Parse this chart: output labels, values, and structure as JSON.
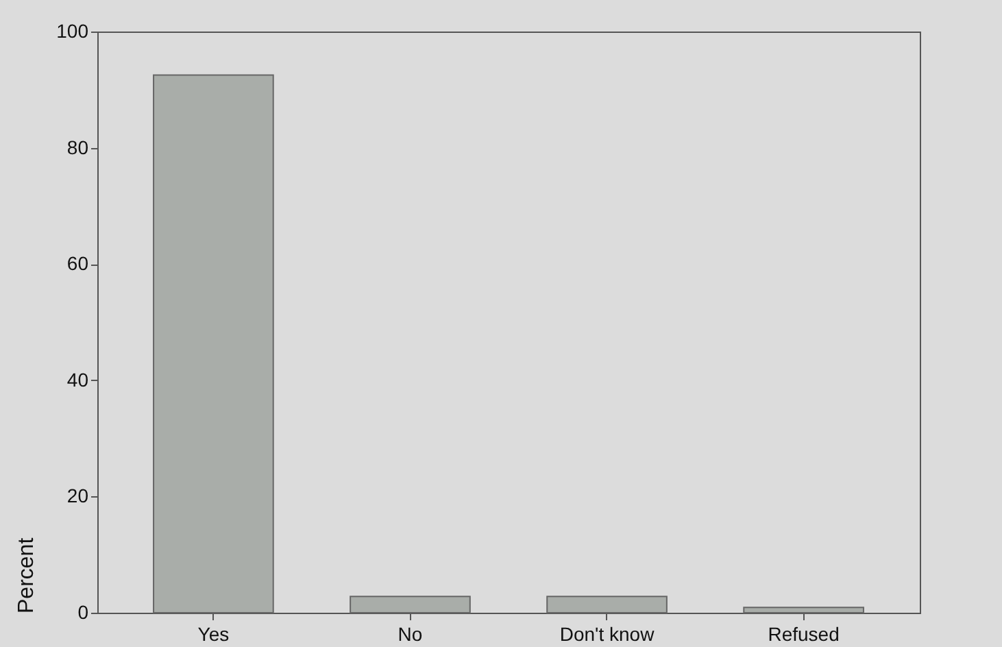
{
  "chart_data": {
    "type": "bar",
    "ylabel": "Percent",
    "categories": [
      "Yes",
      "No",
      "Don't know",
      "Refused"
    ],
    "values": [
      92.5,
      2.8,
      2.8,
      0.9
    ],
    "color": "#a9ada9",
    "ylim": [
      0,
      100
    ],
    "yticks": [
      0,
      20,
      40,
      60,
      80,
      100
    ],
    "grid": false,
    "legend": false
  }
}
